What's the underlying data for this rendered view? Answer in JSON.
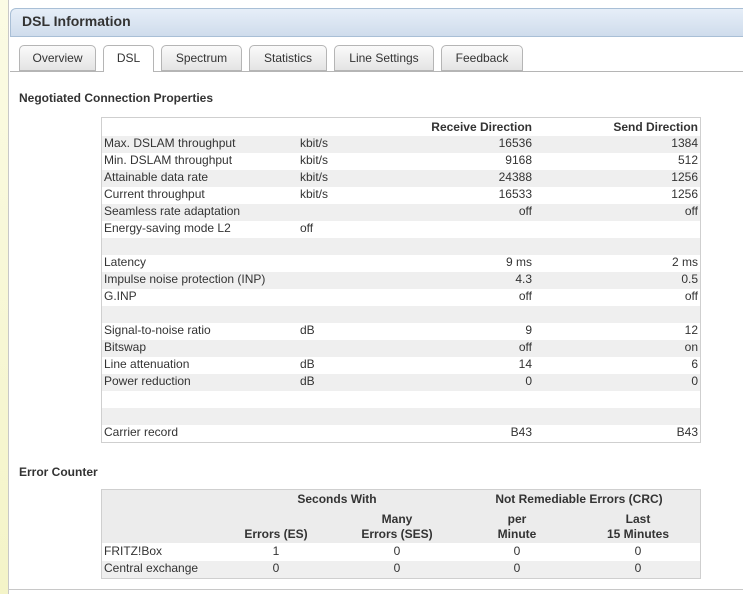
{
  "header": {
    "title": "DSL Information"
  },
  "tabs": [
    {
      "label": "Overview"
    },
    {
      "label": "DSL",
      "active": true
    },
    {
      "label": "Spectrum"
    },
    {
      "label": "Statistics"
    },
    {
      "label": "Line Settings"
    },
    {
      "label": "Feedback"
    }
  ],
  "connection": {
    "title": "Negotiated Connection Properties",
    "columns": [
      null,
      null,
      "Receive Direction",
      "Send Direction"
    ],
    "rows": [
      [
        "Max. DSLAM throughput",
        "kbit/s",
        "16536",
        "1384"
      ],
      [
        "Min. DSLAM throughput",
        "kbit/s",
        "9168",
        "512"
      ],
      [
        "Attainable data rate",
        "kbit/s",
        "24388",
        "1256"
      ],
      [
        "Current throughput",
        "kbit/s",
        "16533",
        "1256"
      ],
      [
        "Seamless rate adaptation",
        null,
        "off",
        "off"
      ],
      [
        "Energy-saving mode L2",
        "off",
        null,
        null
      ],
      [
        null,
        null,
        null,
        null
      ],
      [
        "Latency",
        null,
        "9 ms",
        "2 ms"
      ],
      [
        "Impulse noise protection (INP)",
        null,
        "4.3",
        "0.5"
      ],
      [
        "G.INP",
        null,
        "off",
        "off"
      ],
      [
        null,
        null,
        null,
        null
      ],
      [
        "Signal-to-noise ratio",
        "dB",
        "9",
        "12"
      ],
      [
        "Bitswap",
        null,
        "off",
        "on"
      ],
      [
        "Line attenuation",
        "dB",
        "14",
        "6"
      ],
      [
        "Power reduction",
        "dB",
        "0",
        "0"
      ],
      [
        null,
        null,
        null,
        null
      ],
      [
        null,
        null,
        null,
        null
      ],
      [
        "Carrier record",
        null,
        "B43",
        "B43"
      ]
    ]
  },
  "errors": {
    "title": "Error Counter",
    "groups": [
      "Seconds With",
      "Not Remediable Errors (CRC)"
    ],
    "columns": [
      [
        "Errors (ES)"
      ],
      [
        "Many",
        "Errors (SES)"
      ],
      [
        "per",
        "Minute"
      ],
      [
        "Last",
        "15 Minutes"
      ]
    ],
    "rows": [
      [
        "FRITZ!Box",
        "1",
        "0",
        "0",
        "0"
      ],
      [
        "Central exchange",
        "0",
        "0",
        "0",
        "0"
      ]
    ]
  }
}
